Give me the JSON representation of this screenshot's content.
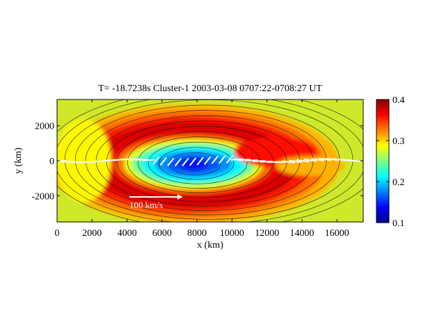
{
  "chart_data": {
    "type": "heatmap",
    "title": "T= -18.7238s  Cluster-1  2003-03-08  0707:22-0708:27 UT",
    "xlabel": "x (km)",
    "ylabel": "y (km)",
    "xlim": [
      0,
      17500
    ],
    "ylim": [
      -3500,
      3500
    ],
    "x_ticks": [
      0,
      2000,
      4000,
      6000,
      8000,
      10000,
      12000,
      14000,
      16000
    ],
    "x_tick_labels": [
      "0",
      "2000",
      "4000",
      "6000",
      "8000",
      "10000",
      "12000",
      "14000",
      "16000"
    ],
    "y_ticks": [
      2000,
      0,
      -2000
    ],
    "y_tick_labels": [
      "2000",
      "0",
      "-2000"
    ],
    "colorbar": {
      "colormap": "jet",
      "range": [
        0.1,
        0.4
      ],
      "ticks": [
        0.4,
        0.3,
        0.2,
        0.1
      ],
      "tick_labels": [
        "0.4",
        "0.3",
        "0.2",
        "0.1"
      ]
    },
    "field": {
      "description_value_range": [
        0.14,
        0.4
      ],
      "background_value": 0.3,
      "island_center": [
        7800,
        -200
      ],
      "island_core_value": 0.14,
      "island_ring_value": 0.38
    },
    "velocity_scale_label": "100 km/s",
    "grid": false,
    "legend": "none"
  }
}
